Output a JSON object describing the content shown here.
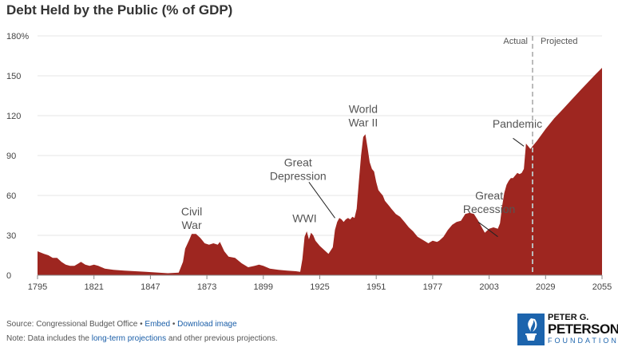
{
  "chart_data": {
    "type": "area",
    "title": "Debt Held by the Public (% of GDP)",
    "xlabel": "",
    "ylabel": "",
    "xlim": [
      1795,
      2055
    ],
    "ylim": [
      0,
      180
    ],
    "x_ticks": [
      1795,
      1821,
      1847,
      1873,
      1899,
      1925,
      1951,
      1977,
      2003,
      2029,
      2055
    ],
    "y_ticks": [
      {
        "v": 0,
        "label": "0"
      },
      {
        "v": 30,
        "label": "30"
      },
      {
        "v": 60,
        "label": "60"
      },
      {
        "v": 90,
        "label": "90"
      },
      {
        "v": 120,
        "label": "120"
      },
      {
        "v": 150,
        "label": "150"
      },
      {
        "v": 180,
        "label": "180%"
      }
    ],
    "grid": "horizontal",
    "color": "#9e2620",
    "divider": {
      "x": 2023,
      "left_label": "Actual",
      "right_label": "Projected"
    },
    "points": [
      [
        1795,
        18
      ],
      [
        1798,
        16
      ],
      [
        1800,
        15
      ],
      [
        1802,
        13
      ],
      [
        1804,
        13
      ],
      [
        1806,
        10
      ],
      [
        1808,
        8
      ],
      [
        1810,
        7
      ],
      [
        1812,
        7
      ],
      [
        1814,
        9
      ],
      [
        1815,
        10
      ],
      [
        1817,
        8
      ],
      [
        1819,
        7
      ],
      [
        1821,
        8
      ],
      [
        1823,
        7
      ],
      [
        1826,
        5
      ],
      [
        1830,
        4
      ],
      [
        1835,
        3.5
      ],
      [
        1845,
        2.5
      ],
      [
        1855,
        1.5
      ],
      [
        1860,
        2
      ],
      [
        1862,
        10
      ],
      [
        1863,
        20
      ],
      [
        1865,
        27
      ],
      [
        1866,
        31
      ],
      [
        1868,
        31
      ],
      [
        1870,
        28
      ],
      [
        1872,
        24
      ],
      [
        1874,
        23
      ],
      [
        1876,
        24
      ],
      [
        1878,
        23
      ],
      [
        1879,
        25
      ],
      [
        1881,
        18
      ],
      [
        1883,
        14
      ],
      [
        1886,
        13
      ],
      [
        1889,
        9
      ],
      [
        1892,
        6
      ],
      [
        1895,
        7
      ],
      [
        1897,
        8
      ],
      [
        1899,
        7
      ],
      [
        1902,
        5
      ],
      [
        1906,
        4
      ],
      [
        1910,
        3.5
      ],
      [
        1914,
        3
      ],
      [
        1916,
        2.5
      ],
      [
        1917,
        12
      ],
      [
        1918,
        29
      ],
      [
        1919,
        33
      ],
      [
        1920,
        27
      ],
      [
        1921,
        32
      ],
      [
        1922,
        30
      ],
      [
        1923,
        26
      ],
      [
        1925,
        22
      ],
      [
        1927,
        19
      ],
      [
        1929,
        16
      ],
      [
        1931,
        21
      ],
      [
        1932,
        34
      ],
      [
        1933,
        40
      ],
      [
        1934,
        43
      ],
      [
        1935,
        42
      ],
      [
        1936,
        40
      ],
      [
        1937,
        42
      ],
      [
        1938,
        43
      ],
      [
        1939,
        42
      ],
      [
        1940,
        44
      ],
      [
        1941,
        43
      ],
      [
        1942,
        50
      ],
      [
        1943,
        70
      ],
      [
        1944,
        90
      ],
      [
        1945,
        104
      ],
      [
        1946,
        106
      ],
      [
        1947,
        96
      ],
      [
        1948,
        85
      ],
      [
        1949,
        80
      ],
      [
        1950,
        78
      ],
      [
        1951,
        70
      ],
      [
        1952,
        64
      ],
      [
        1953,
        62
      ],
      [
        1954,
        60
      ],
      [
        1955,
        56
      ],
      [
        1956,
        54
      ],
      [
        1957,
        52
      ],
      [
        1958,
        50
      ],
      [
        1959,
        48
      ],
      [
        1960,
        46
      ],
      [
        1962,
        44
      ],
      [
        1964,
        40
      ],
      [
        1966,
        36
      ],
      [
        1968,
        33
      ],
      [
        1970,
        29
      ],
      [
        1972,
        27
      ],
      [
        1974,
        25
      ],
      [
        1975,
        24
      ],
      [
        1976,
        25
      ],
      [
        1977,
        26
      ],
      [
        1979,
        25
      ],
      [
        1980,
        26
      ],
      [
        1982,
        29
      ],
      [
        1984,
        34
      ],
      [
        1986,
        38
      ],
      [
        1988,
        40
      ],
      [
        1990,
        41
      ],
      [
        1992,
        46
      ],
      [
        1994,
        47
      ],
      [
        1996,
        46
      ],
      [
        1998,
        41
      ],
      [
        2000,
        35
      ],
      [
        2001,
        32
      ],
      [
        2003,
        35
      ],
      [
        2005,
        36
      ],
      [
        2007,
        35
      ],
      [
        2008,
        39
      ],
      [
        2009,
        52
      ],
      [
        2010,
        62
      ],
      [
        2011,
        68
      ],
      [
        2012,
        71
      ],
      [
        2013,
        73
      ],
      [
        2014,
        73
      ],
      [
        2015,
        75
      ],
      [
        2016,
        77
      ],
      [
        2017,
        76
      ],
      [
        2018,
        77
      ],
      [
        2019,
        80
      ],
      [
        2020,
        99
      ],
      [
        2021,
        97
      ],
      [
        2022,
        95
      ],
      [
        2023,
        97
      ],
      [
        2025,
        101
      ],
      [
        2029,
        110
      ],
      [
        2033,
        118
      ],
      [
        2037,
        125
      ],
      [
        2041,
        132
      ],
      [
        2045,
        139
      ],
      [
        2049,
        146
      ],
      [
        2052,
        151
      ],
      [
        2055,
        156
      ]
    ],
    "annotations": [
      {
        "lines": [
          "Civil",
          "War"
        ],
        "x": 1866,
        "y": 45
      },
      {
        "lines": [
          "WWI"
        ],
        "x": 1918,
        "y": 40
      },
      {
        "lines": [
          "Great",
          "Depression"
        ],
        "x": 1915,
        "y": 82,
        "leader": [
          [
            1920,
            70
          ],
          [
            1932,
            43
          ]
        ]
      },
      {
        "lines": [
          "World",
          "War II"
        ],
        "x": 1945,
        "y": 122
      },
      {
        "lines": [
          "Great",
          "Recession"
        ],
        "x": 2003,
        "y": 57,
        "leader": [
          [
            1998,
            40
          ],
          [
            2007,
            29
          ]
        ]
      },
      {
        "lines": [
          "Pandemic"
        ],
        "x": 2016,
        "y": 111,
        "leader": [
          [
            2014,
            103
          ],
          [
            2019,
            97
          ]
        ]
      }
    ]
  },
  "footer": {
    "source_label": "Source: Congressional Budget Office",
    "embed_link": "Embed",
    "download_link": "Download image",
    "note_prefix": "Note: Data includes the",
    "note_link": "long-term projections",
    "note_suffix": "and other previous projections."
  },
  "logo": {
    "line1": "PETER G.",
    "line2": "PETERSON",
    "line3": "FOUNDATION"
  }
}
